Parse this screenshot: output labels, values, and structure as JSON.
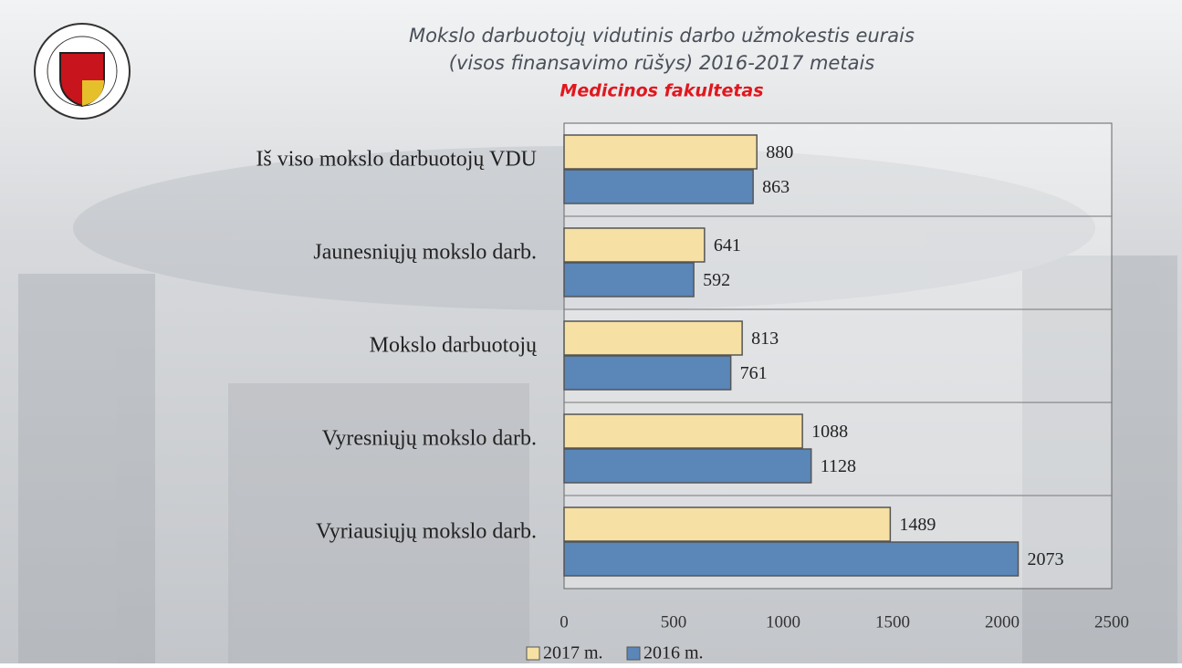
{
  "chart_data": {
    "type": "barh",
    "title": [
      "Mokslo darbuotojų vidutinis darbo užmokestis eurais",
      "(visos finansavimo rūšys) 2016-2017 metais"
    ],
    "subtitle": "Medicinos fakultetas",
    "categories": [
      "Iš viso mokslo darbuotojų VDU",
      "Jaunesniųjų mokslo darb.",
      "Mokslo darbuotojų",
      "Vyresniųjų mokslo darb.",
      "Vyriausiųjų mokslo darb."
    ],
    "series": [
      {
        "name": "2017 m.",
        "color": "#f6e0a4",
        "values": [
          880,
          641,
          813,
          1088,
          1489
        ]
      },
      {
        "name": "2016 m.",
        "color": "#5a86b8",
        "values": [
          863,
          592,
          761,
          1128,
          2073
        ]
      }
    ],
    "xlim": [
      0,
      2500
    ],
    "xticks": [
      0,
      500,
      1000,
      1500,
      2000,
      2500
    ],
    "grid": true,
    "legend": "bottom"
  }
}
